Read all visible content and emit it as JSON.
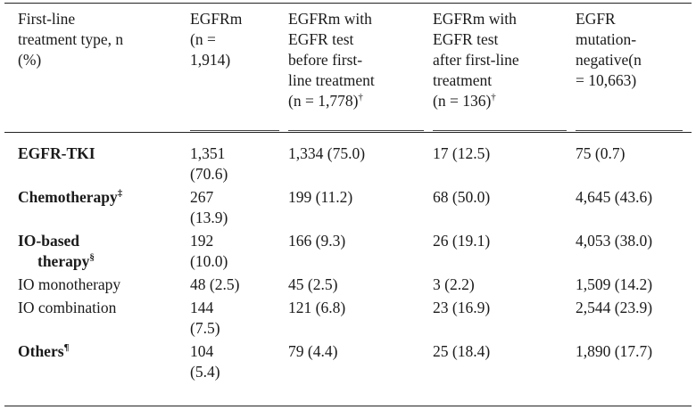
{
  "headers": {
    "col1": [
      "First-line",
      "treatment type, n",
      "(%)"
    ],
    "col2": [
      "EGFRm",
      "(n =",
      "1,914)"
    ],
    "col3": [
      "EGFRm with",
      "EGFR test",
      "before first-",
      "line treatment",
      "(n = 1,778)"
    ],
    "col3_sup": "†",
    "col4": [
      "EGFRm with",
      "EGFR test",
      "after first-line",
      "treatment",
      "(n = 136)"
    ],
    "col4_sup": "†",
    "col5": [
      "EGFR",
      "mutation-",
      "negative(n",
      "= 10,663)"
    ]
  },
  "rows": [
    {
      "label": "EGFR-TKI",
      "sup": "",
      "bold": true,
      "c2": [
        "1,351",
        "(70.6)"
      ],
      "c3": "1,334 (75.0)",
      "c4": "17 (12.5)",
      "c5": "75 (0.7)"
    },
    {
      "label": "Chemotherapy",
      "sup": "‡",
      "bold": true,
      "c2": [
        "267",
        "(13.9)"
      ],
      "c3": "199 (11.2)",
      "c4": "68 (50.0)",
      "c5": "4,645 (43.6)"
    },
    {
      "label": "IO-based",
      "label2": "therapy",
      "sup": "§",
      "bold": true,
      "c2": [
        "192",
        "(10.0)"
      ],
      "c3": "166 (9.3)",
      "c4": "26 (19.1)",
      "c5": "4,053 (38.0)"
    },
    {
      "label": "IO monotherapy",
      "sup": "",
      "bold": false,
      "c2": [
        "48 (2.5)"
      ],
      "c3": "45 (2.5)",
      "c4": "3 (2.2)",
      "c5": "1,509 (14.2)"
    },
    {
      "label": "IO combination",
      "sup": "",
      "bold": false,
      "c2": [
        "144",
        "(7.5)"
      ],
      "c3": "121 (6.8)",
      "c4": "23 (16.9)",
      "c5": "2,544 (23.9)"
    },
    {
      "label": "Others",
      "sup": "¶",
      "bold": true,
      "c2": [
        "104",
        "(5.4)"
      ],
      "c3": "79 (4.4)",
      "c4": "25 (18.4)",
      "c5": "1,890 (17.7)"
    }
  ]
}
